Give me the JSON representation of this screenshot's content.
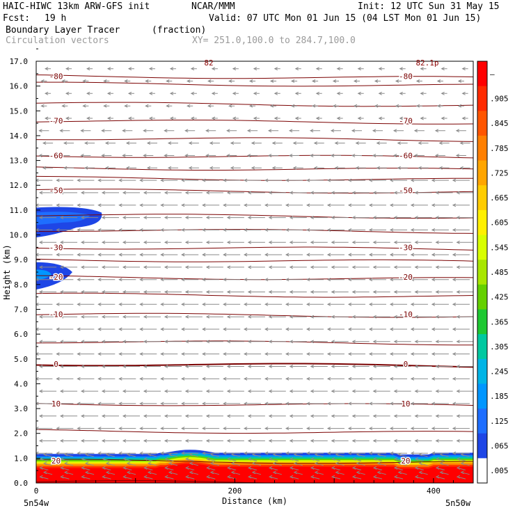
{
  "header": {
    "title_left": "HAIC-HIWC 13km ARW-GFS init",
    "org": "NCAR/MMM",
    "init": "Init: 12 UTC Sun 31 May 15",
    "fcst_label": "Fcst:",
    "fcst_value": "19 h",
    "valid": "Valid: 07 UTC Mon 01 Jun 15 (04 LST Mon 01 Jun 15)",
    "field_name": "Boundary Layer Tracer",
    "field_units": "(fraction)",
    "vector_label": "Circulation vectors",
    "xy_label": "XY= 251.0,100.0 to 284.7,100.0"
  },
  "chart_data": {
    "type": "heatmap",
    "ylabel": "Height (km)",
    "xlabel": "Distance (km)",
    "xlim": [
      0,
      440
    ],
    "ylim": [
      0,
      17
    ],
    "yticks": [
      "0.0",
      "1.0",
      "2.0",
      "3.0",
      "4.0",
      "5.0",
      "6.0",
      "7.0",
      "8.0",
      "9.0",
      "10.0",
      "11.0",
      "12.0",
      "13.0",
      "14.0",
      "15.0",
      "16.0",
      "17.0"
    ],
    "xticks": [
      "0",
      "200",
      "400"
    ],
    "xticks_values": [
      0,
      200,
      400
    ],
    "x_end_labels": [
      "5n54w",
      "5n50w"
    ],
    "colorbar": {
      "labels": [
        "–",
        ".905",
        ".845",
        ".785",
        ".725",
        ".665",
        ".605",
        ".545",
        ".485",
        ".425",
        ".365",
        ".305",
        ".245",
        ".185",
        ".125",
        ".065",
        ".005"
      ],
      "colors": [
        "#ff0000",
        "#ff2a00",
        "#ff5500",
        "#ff7f00",
        "#ffa500",
        "#ffcc00",
        "#fff000",
        "#d8ff00",
        "#a8e600",
        "#64d000",
        "#1ec832",
        "#00c8a0",
        "#00b4e6",
        "#0096ff",
        "#1e6eff",
        "#1e46e6",
        "#ffffff"
      ]
    },
    "temperature_contours": [
      {
        "label": "-80",
        "height_km": 16.4
      },
      {
        "label": "-70",
        "height_km": 14.6
      },
      {
        "label": "-60",
        "height_km": 13.2
      },
      {
        "label": "-50",
        "height_km": 11.8
      },
      {
        "label": "-30",
        "height_km": 9.5
      },
      {
        "label": "-20",
        "height_km": 8.3
      },
      {
        "label": "-10",
        "height_km": 6.8
      },
      {
        "label": "0",
        "height_km": 4.8
      },
      {
        "label": "10",
        "height_km": 3.2
      },
      {
        "label": "20",
        "height_km": 0.9
      }
    ],
    "top_labels": [
      "82",
      "82.1p"
    ],
    "tracer_regions": [
      {
        "name": "bl-tracer-layer",
        "x_range": [
          0,
          440
        ],
        "height_top_km": 1.2,
        "value": 0.95
      },
      {
        "name": "upper-tracer-blob-1",
        "x_range": [
          0,
          70
        ],
        "height_range_km": [
          9.9,
          11.1
        ],
        "value": 0.06
      },
      {
        "name": "upper-tracer-blob-2",
        "x_range": [
          0,
          38
        ],
        "height_range_km": [
          7.8,
          8.9
        ],
        "value": 0.06
      }
    ]
  }
}
